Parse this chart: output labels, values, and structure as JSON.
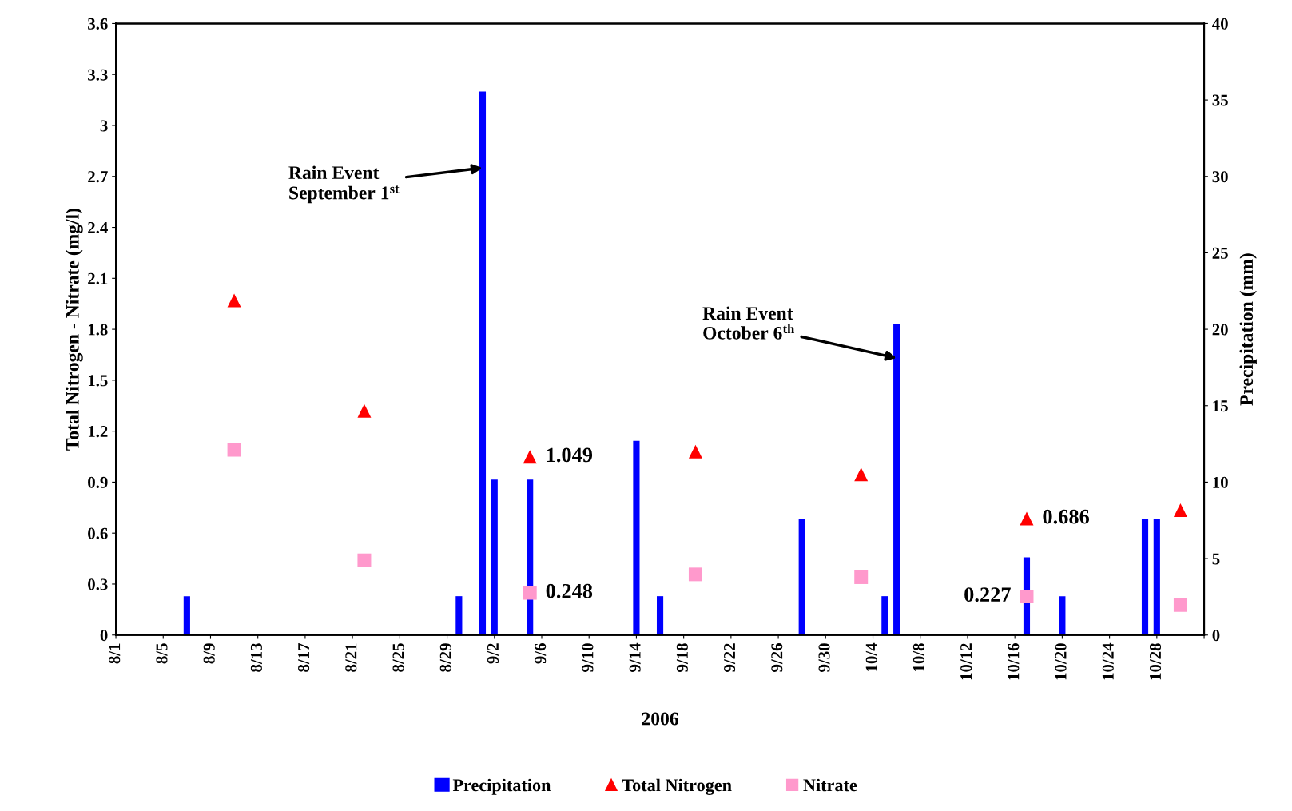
{
  "chart_data": {
    "type": "scatter",
    "xlabel": "2006",
    "ylabel": "Total Nitrogen - Nitrate (mg/l)",
    "y2label": "Precipitation (mm)",
    "xlim": [
      "2006-08-01",
      "2006-11-01"
    ],
    "xticks": [
      {
        "value": "2006-08-01",
        "label": "8/1"
      },
      {
        "value": "2006-08-05",
        "label": "8/5"
      },
      {
        "value": "2006-08-09",
        "label": "8/9"
      },
      {
        "value": "2006-08-13",
        "label": "8/13"
      },
      {
        "value": "2006-08-17",
        "label": "8/17"
      },
      {
        "value": "2006-08-21",
        "label": "8/21"
      },
      {
        "value": "2006-08-25",
        "label": "8/25"
      },
      {
        "value": "2006-08-29",
        "label": "8/29"
      },
      {
        "value": "2006-09-02",
        "label": "9/2"
      },
      {
        "value": "2006-09-06",
        "label": "9/6"
      },
      {
        "value": "2006-09-10",
        "label": "9/10"
      },
      {
        "value": "2006-09-14",
        "label": "9/14"
      },
      {
        "value": "2006-09-18",
        "label": "9/18"
      },
      {
        "value": "2006-09-22",
        "label": "9/22"
      },
      {
        "value": "2006-09-26",
        "label": "9/26"
      },
      {
        "value": "2006-09-30",
        "label": "9/30"
      },
      {
        "value": "2006-10-04",
        "label": "10/4"
      },
      {
        "value": "2006-10-08",
        "label": "10/8"
      },
      {
        "value": "2006-10-12",
        "label": "10/12"
      },
      {
        "value": "2006-10-16",
        "label": "10/16"
      },
      {
        "value": "2006-10-20",
        "label": "10/20"
      },
      {
        "value": "2006-10-24",
        "label": "10/24"
      },
      {
        "value": "2006-10-28",
        "label": "10/28"
      },
      {
        "value": "2006-11-01",
        "label": null
      }
    ],
    "ylim": [
      0,
      3.6
    ],
    "yticks": [
      0,
      0.3,
      0.6,
      0.9,
      1.2,
      1.5,
      1.8,
      2.1,
      2.4,
      2.7,
      3,
      3.3,
      3.6
    ],
    "y2lim": [
      0,
      40
    ],
    "y2ticks": [
      0,
      5,
      10,
      15,
      20,
      25,
      30,
      35,
      40
    ],
    "grid": false,
    "legend": "bottom",
    "series": [
      {
        "name": "Precipitation",
        "type": "bar",
        "axis": "y2",
        "color": "#0000ff",
        "x": [
          "2006-08-07",
          "2006-08-30",
          "2006-09-01",
          "2006-09-02",
          "2006-09-05",
          "2006-09-14",
          "2006-09-16",
          "2006-09-28",
          "2006-10-05",
          "2006-10-06",
          "2006-10-17",
          "2006-10-20",
          "2006-10-27",
          "2006-10-28"
        ],
        "values": [
          2.54,
          2.54,
          35.56,
          10.16,
          10.16,
          12.7,
          2.54,
          7.62,
          2.54,
          20.32,
          5.08,
          2.54,
          7.62,
          7.62
        ]
      },
      {
        "name": "Total Nitrogen",
        "marker": "triangle",
        "color": "#ff0000",
        "x": [
          "2006-08-11",
          "2006-08-22",
          "2006-09-05",
          "2006-09-19",
          "2006-10-03",
          "2006-10-17",
          "2006-10-30"
        ],
        "values": [
          1.97,
          1.32,
          1.049,
          1.08,
          0.945,
          0.686,
          0.735
        ],
        "value_labels": [
          null,
          null,
          "1.049",
          null,
          null,
          "0.686",
          null
        ]
      },
      {
        "name": "Nitrate",
        "marker": "square",
        "color": "#ff99cc",
        "x": [
          "2006-08-11",
          "2006-08-22",
          "2006-09-05",
          "2006-09-19",
          "2006-10-03",
          "2006-10-17",
          "2006-10-30"
        ],
        "values": [
          1.09,
          0.44,
          0.248,
          0.357,
          0.34,
          0.227,
          0.176
        ],
        "value_labels": [
          null,
          null,
          "0.248",
          null,
          null,
          "0.227",
          null
        ]
      }
    ],
    "annotations": [
      {
        "text": "Rain Event\nSeptember 1$^{st}$",
        "x": "2006-09-01",
        "y": 2.75
      },
      {
        "text": "Rain Event\nOctober 6$^{th}$",
        "x": "2006-10-06",
        "y": 1.63
      }
    ]
  }
}
